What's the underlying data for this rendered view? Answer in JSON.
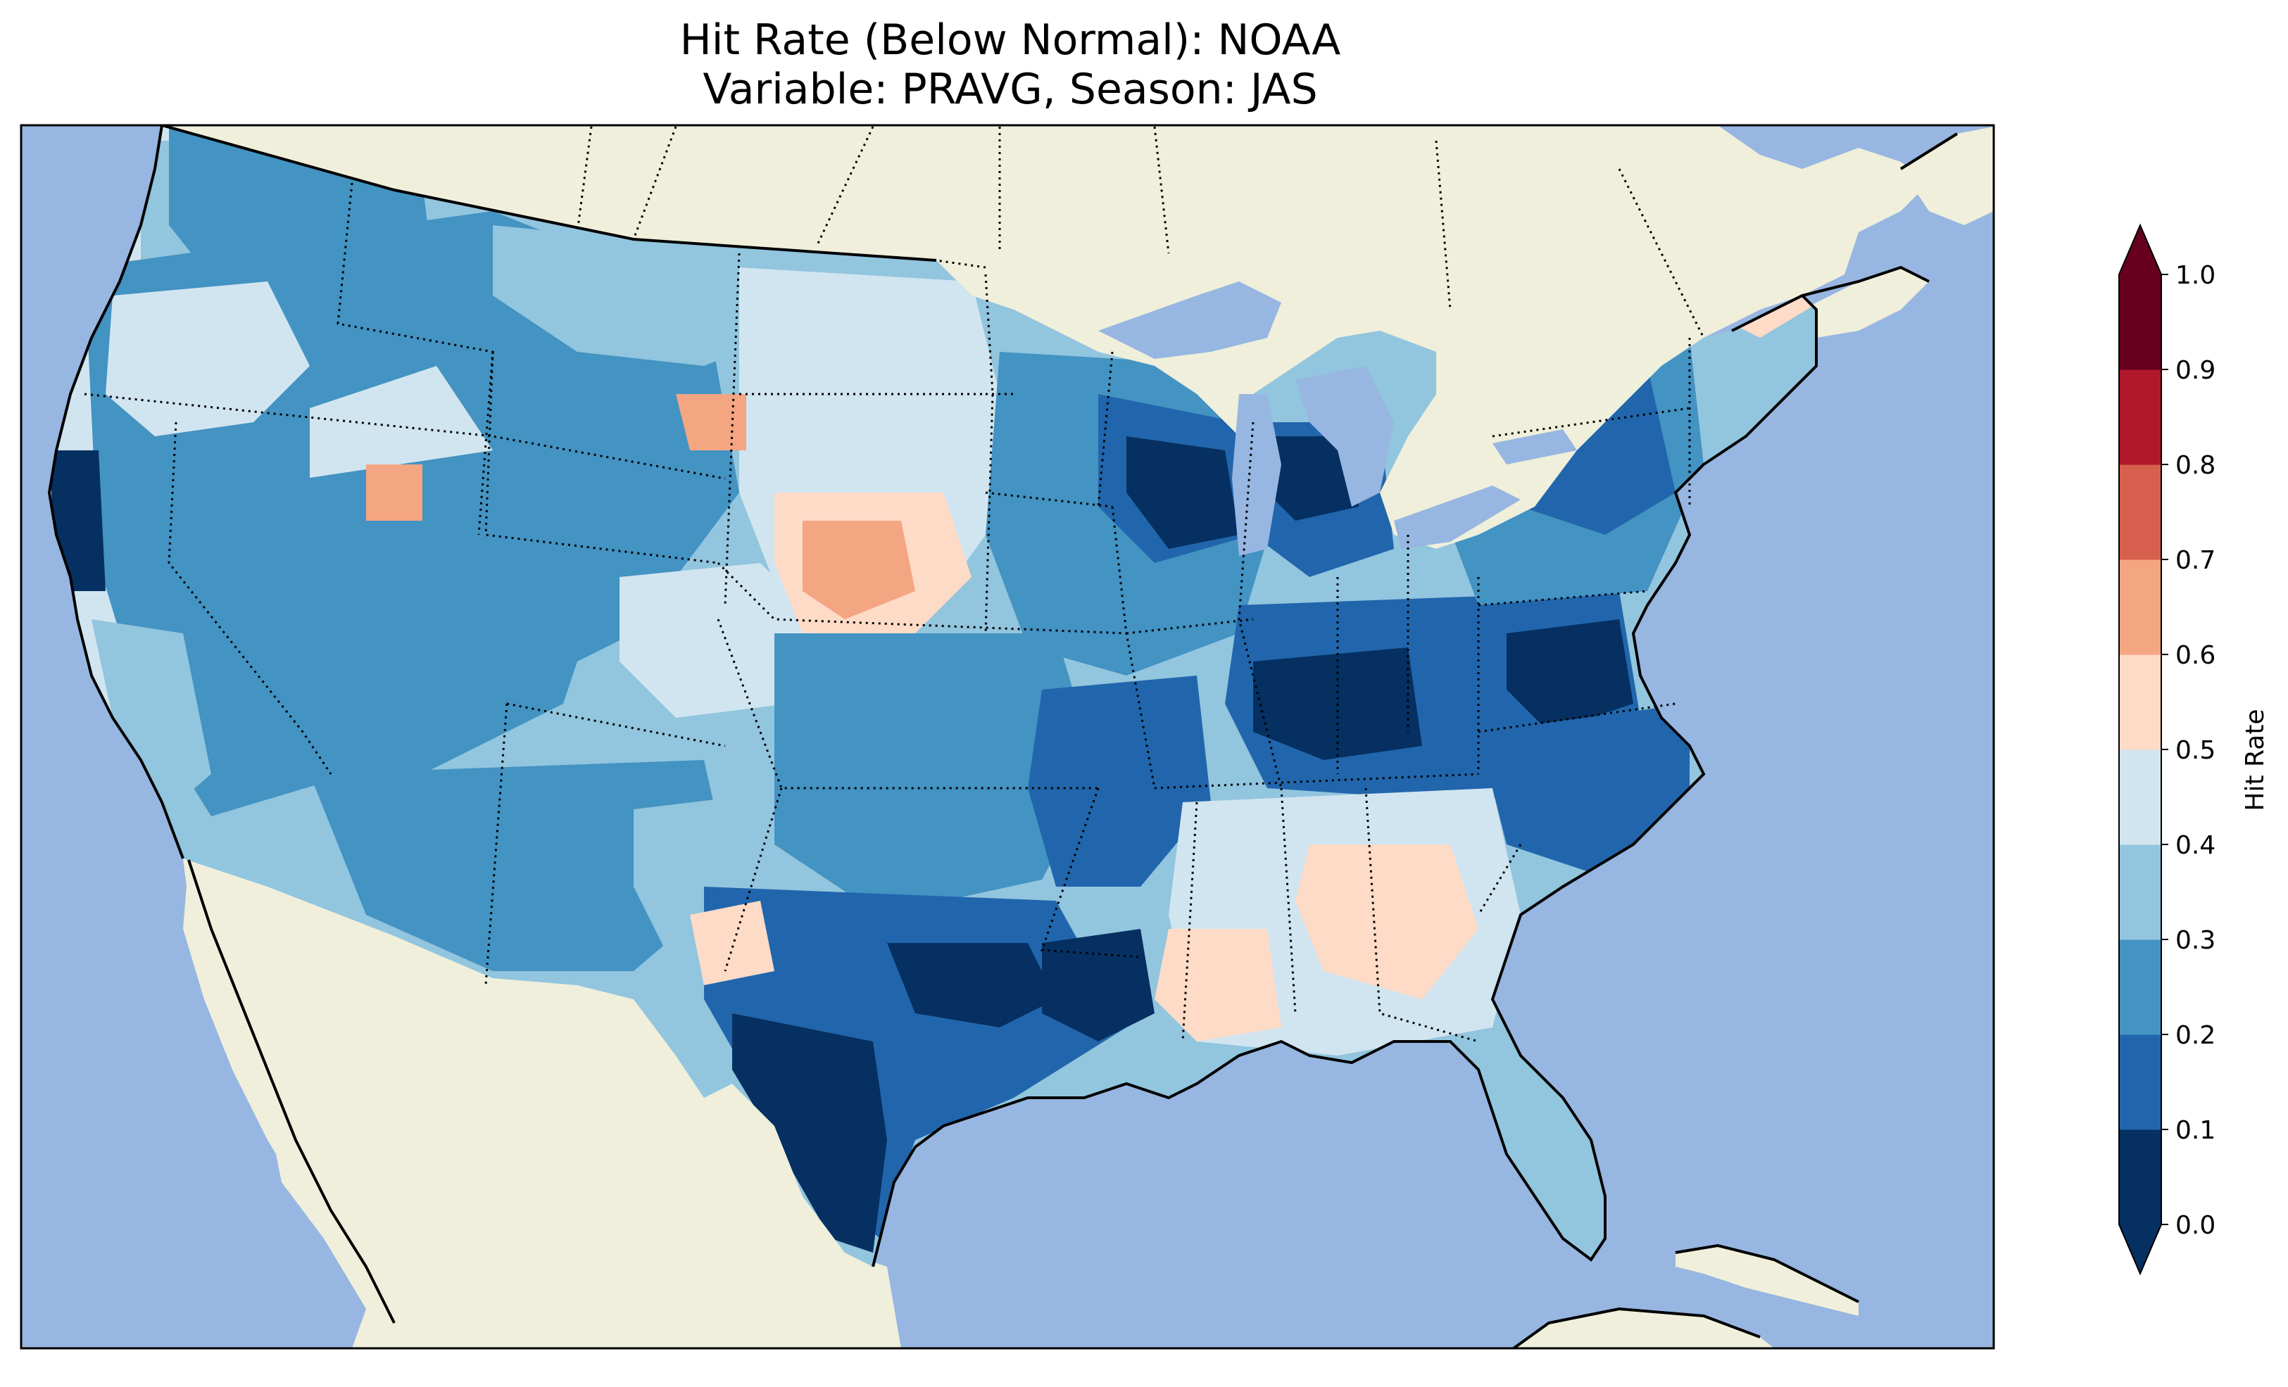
{
  "title_line1": "Hit Rate (Below Normal): NOAA",
  "title_line2": "Variable: PRAVG, Season: JAS",
  "colorbar": {
    "label": "Hit Rate",
    "ticks": [
      "0.0",
      "0.1",
      "0.2",
      "0.3",
      "0.4",
      "0.5",
      "0.6",
      "0.7",
      "0.8",
      "0.9",
      "1.0"
    ],
    "colors": [
      "#053061",
      "#2166ac",
      "#4393c3",
      "#92c5de",
      "#d1e5f0",
      "#fddbc7",
      "#f4a582",
      "#d6604d",
      "#b2182b",
      "#67001f"
    ],
    "extend_under_color": "#053061",
    "extend_over_color": "#67001f"
  },
  "map_colors": {
    "ocean": "#97b6e1",
    "land": "#efefdb",
    "coast": "#000000"
  }
}
